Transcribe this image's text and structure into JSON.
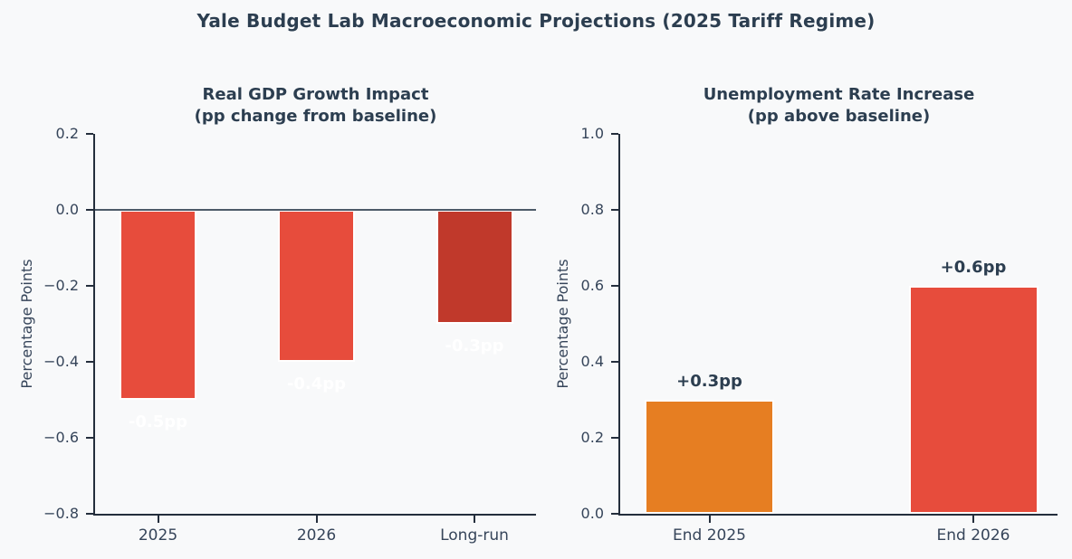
{
  "figure": {
    "title": "Yale Budget Lab Macroeconomic Projections (2025 Tariff Regime)",
    "background": "#f8f9fa",
    "title_color": "#2c3e50"
  },
  "style": {
    "spine_color": "#242e3c",
    "tick_label_color": "#36455a",
    "zero_line_color": "#4d5a68",
    "bar_edge_color": "#ffffff"
  },
  "chart_data": [
    {
      "type": "bar",
      "name": "gdp-impact",
      "title_lines": [
        "Real GDP Growth Impact",
        "(pp change from baseline)"
      ],
      "categories": [
        "2025",
        "2026",
        "Long-run"
      ],
      "values": [
        -0.5,
        -0.4,
        -0.3
      ],
      "bar_labels": [
        "-0.5pp",
        "-0.4pp",
        "-0.3pp"
      ],
      "bar_label_color": "#ffffff",
      "bar_colors": [
        "#e74c3c",
        "#e74c3c",
        "#c0392b"
      ],
      "ylabel": "Percentage Points",
      "xlabel": "",
      "ylim": [
        -0.8,
        0.2
      ],
      "yticks": [
        0.2,
        0.0,
        -0.2,
        -0.4,
        -0.6,
        -0.8
      ],
      "ytick_labels": [
        "0.2",
        "0.0",
        "−0.2",
        "−0.4",
        "−0.6",
        "−0.8"
      ],
      "zero_line": true,
      "grid": false,
      "legend": "none"
    },
    {
      "type": "bar",
      "name": "unemployment",
      "title_lines": [
        "Unemployment Rate Increase",
        "(pp above baseline)"
      ],
      "categories": [
        "End 2025",
        "End 2026"
      ],
      "values": [
        0.3,
        0.6
      ],
      "bar_labels": [
        "+0.3pp",
        "+0.6pp"
      ],
      "bar_label_color": "#2c3e50",
      "bar_colors": [
        "#e67e22",
        "#e74c3c"
      ],
      "ylabel": "Percentage Points",
      "xlabel": "",
      "ylim": [
        0.0,
        1.0
      ],
      "yticks": [
        1.0,
        0.8,
        0.6,
        0.4,
        0.2,
        0.0
      ],
      "ytick_labels": [
        "1.0",
        "0.8",
        "0.6",
        "0.4",
        "0.2",
        "0.0"
      ],
      "zero_line": false,
      "grid": false,
      "legend": "none"
    }
  ]
}
